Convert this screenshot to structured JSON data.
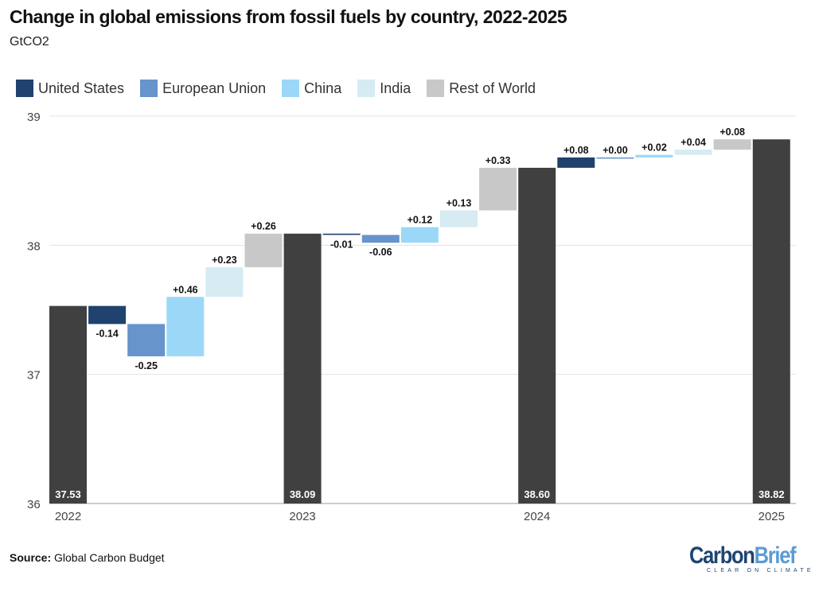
{
  "title": "Change in global emissions from fossil fuels by country, 2022-2025",
  "subtitle": "GtCO2",
  "source_label": "Source:",
  "source_text": "Global Carbon Budget",
  "logo": {
    "part1": "Carbon",
    "part2": "Brief",
    "tagline": "CLEAR ON CLIMATE"
  },
  "chart_data": {
    "type": "waterfall",
    "ylim": [
      36,
      39
    ],
    "yticks": [
      "36",
      "37",
      "38",
      "39"
    ],
    "grid": true,
    "legend_position": "top-left",
    "legend": [
      {
        "name": "United States",
        "color": "#1f426e"
      },
      {
        "name": "European Union",
        "color": "#6694cb"
      },
      {
        "name": "China",
        "color": "#9bd8f7"
      },
      {
        "name": "India",
        "color": "#d6ebf2"
      },
      {
        "name": "Rest of World",
        "color": "#c8c8c8"
      }
    ],
    "total_color": "#404040",
    "bars": [
      {
        "type": "total",
        "x_label": "2022",
        "value": 37.53,
        "label": "37.53"
      },
      {
        "type": "United States",
        "value": -0.14,
        "label": "-0.14"
      },
      {
        "type": "European Union",
        "value": -0.25,
        "label": "-0.25"
      },
      {
        "type": "China",
        "value": 0.46,
        "label": "+0.46"
      },
      {
        "type": "India",
        "value": 0.23,
        "label": "+0.23"
      },
      {
        "type": "Rest of World",
        "value": 0.26,
        "label": "+0.26"
      },
      {
        "type": "total",
        "x_label": "2023",
        "value": 38.09,
        "label": "38.09"
      },
      {
        "type": "United States",
        "value": -0.01,
        "label": "-0.01"
      },
      {
        "type": "European Union",
        "value": -0.06,
        "label": "-0.06"
      },
      {
        "type": "China",
        "value": 0.12,
        "label": "+0.12"
      },
      {
        "type": "India",
        "value": 0.13,
        "label": "+0.13"
      },
      {
        "type": "Rest of World",
        "value": 0.33,
        "label": "+0.33"
      },
      {
        "type": "total",
        "x_label": "2024",
        "value": 38.6,
        "label": "38.60"
      },
      {
        "type": "United States",
        "value": 0.08,
        "label": "+0.08"
      },
      {
        "type": "European Union",
        "value": 0.0,
        "label": "+0.00"
      },
      {
        "type": "China",
        "value": 0.02,
        "label": "+0.02"
      },
      {
        "type": "India",
        "value": 0.04,
        "label": "+0.04"
      },
      {
        "type": "Rest of World",
        "value": 0.08,
        "label": "+0.08"
      },
      {
        "type": "total",
        "x_label": "2025",
        "value": 38.82,
        "label": "38.82"
      }
    ]
  }
}
